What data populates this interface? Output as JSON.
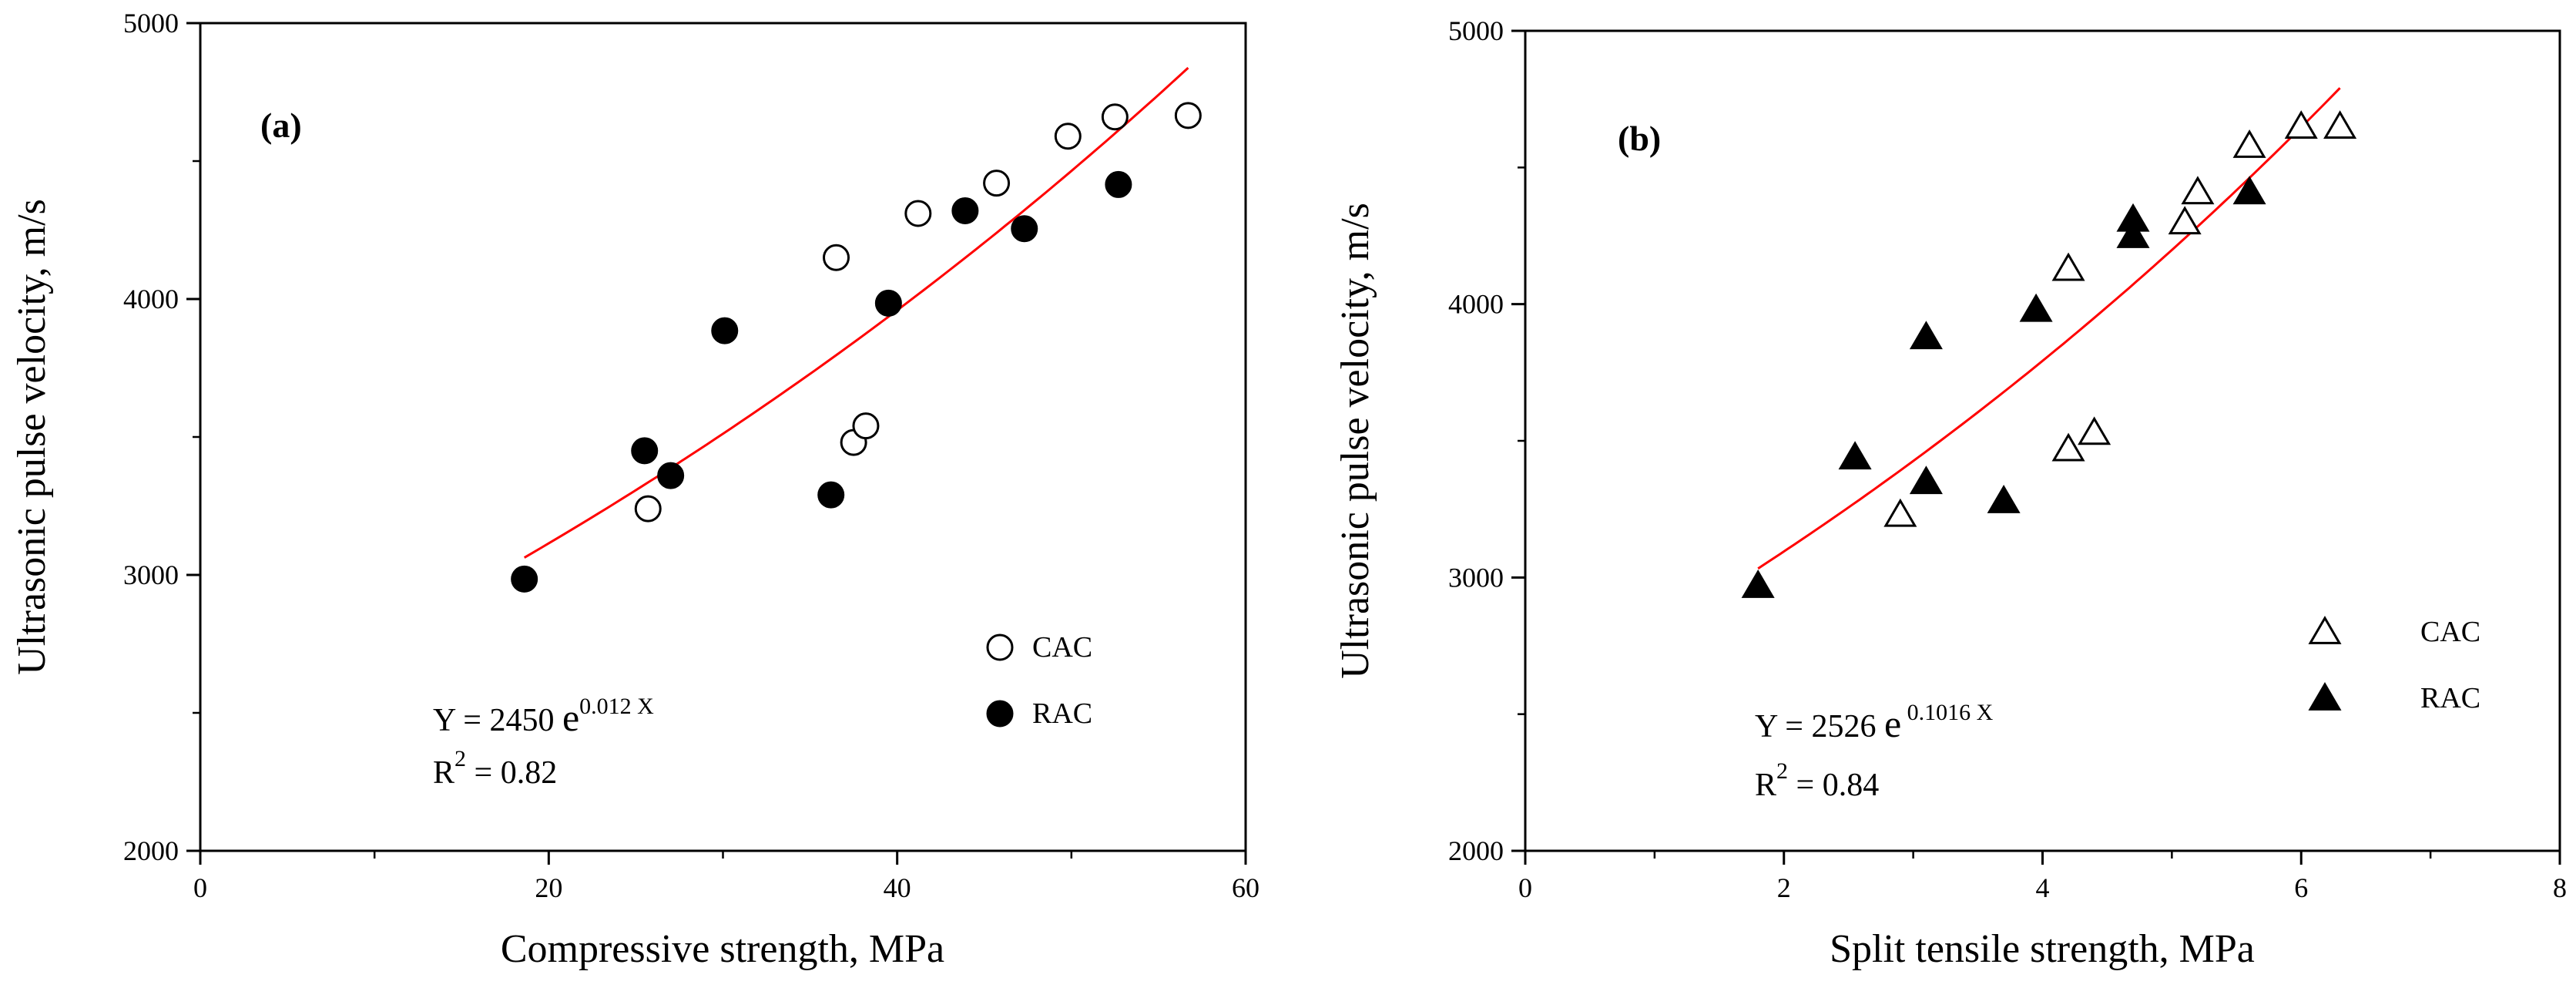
{
  "chart_data": [
    {
      "type": "scatter",
      "panel_label": "(a)",
      "xlabel": "Compressive strength, MPa",
      "ylabel": "Ultrasonic pulse velocity, m/s",
      "xlim": [
        0,
        60
      ],
      "ylim": [
        2000,
        5000
      ],
      "xticks": [
        0,
        20,
        40,
        60
      ],
      "yticks": [
        2000,
        3000,
        4000,
        5000
      ],
      "x_minor_ticks": [
        10,
        30,
        50
      ],
      "y_minor_ticks": [
        2500,
        3500,
        4500
      ],
      "series": [
        {
          "name": "CAC",
          "marker": "circle-open",
          "points": [
            [
              25.7,
              3240
            ],
            [
              36.5,
              4150
            ],
            [
              37.5,
              3480
            ],
            [
              38.2,
              3540
            ],
            [
              41.2,
              4310
            ],
            [
              45.7,
              4420
            ],
            [
              49.8,
              4590
            ],
            [
              52.5,
              4660
            ],
            [
              56.7,
              4665
            ]
          ]
        },
        {
          "name": "RAC",
          "marker": "circle-filled",
          "points": [
            [
              18.6,
              2985
            ],
            [
              25.5,
              3450
            ],
            [
              27.0,
              3360
            ],
            [
              30.1,
              3885
            ],
            [
              36.2,
              3290
            ],
            [
              39.5,
              3985
            ],
            [
              43.9,
              4320
            ],
            [
              47.3,
              4255
            ],
            [
              52.7,
              4415
            ]
          ]
        }
      ],
      "fit": {
        "type": "exponential",
        "a": 2450,
        "b": 0.012,
        "x_range": [
          18.6,
          56.7
        ],
        "color": "#ff0000"
      },
      "equation": {
        "prefix": "Y = 2450 ",
        "e": "e",
        "exponent": "0.012 X",
        "r2_prefix": "R",
        "r2_sup": "2",
        "r2_value": " = 0.82"
      },
      "legend": [
        "CAC",
        "RAC"
      ]
    },
    {
      "type": "scatter",
      "panel_label": "(b)",
      "xlabel": "Split tensile strength, MPa",
      "ylabel": "Ultrasonic pulse velocity, m/s",
      "xlim": [
        0,
        8
      ],
      "ylim": [
        2000,
        5000
      ],
      "xticks": [
        0,
        2,
        4,
        6,
        8
      ],
      "yticks": [
        2000,
        3000,
        4000,
        5000
      ],
      "x_minor_ticks": [
        1,
        3,
        5,
        7
      ],
      "y_minor_ticks": [
        2500,
        3500,
        4500
      ],
      "series": [
        {
          "name": "CAC",
          "marker": "triangle-open",
          "points": [
            [
              2.9,
              3230
            ],
            [
              4.2,
              3470
            ],
            [
              4.2,
              4130
            ],
            [
              4.4,
              3530
            ],
            [
              5.1,
              4300
            ],
            [
              5.2,
              4410
            ],
            [
              5.6,
              4580
            ],
            [
              6.0,
              4650
            ],
            [
              6.3,
              4650
            ]
          ]
        },
        {
          "name": "RAC",
          "marker": "triangle-filled",
          "points": [
            [
              1.8,
              2970
            ],
            [
              2.55,
              3440
            ],
            [
              3.1,
              3350
            ],
            [
              3.1,
              3880
            ],
            [
              3.7,
              3280
            ],
            [
              3.95,
              3980
            ],
            [
              4.7,
              4310
            ],
            [
              4.7,
              4250
            ],
            [
              5.6,
              4410
            ]
          ]
        }
      ],
      "fit": {
        "type": "exponential",
        "a": 2526,
        "b": 0.1016,
        "x_range": [
          1.8,
          6.3
        ],
        "color": "#ff0000"
      },
      "equation": {
        "prefix": "Y = 2526 ",
        "e": "e",
        "exponent": " 0.1016 X",
        "r2_prefix": "R",
        "r2_sup": "2",
        "r2_value": " = 0.84"
      },
      "legend": [
        "CAC",
        "RAC"
      ]
    }
  ]
}
